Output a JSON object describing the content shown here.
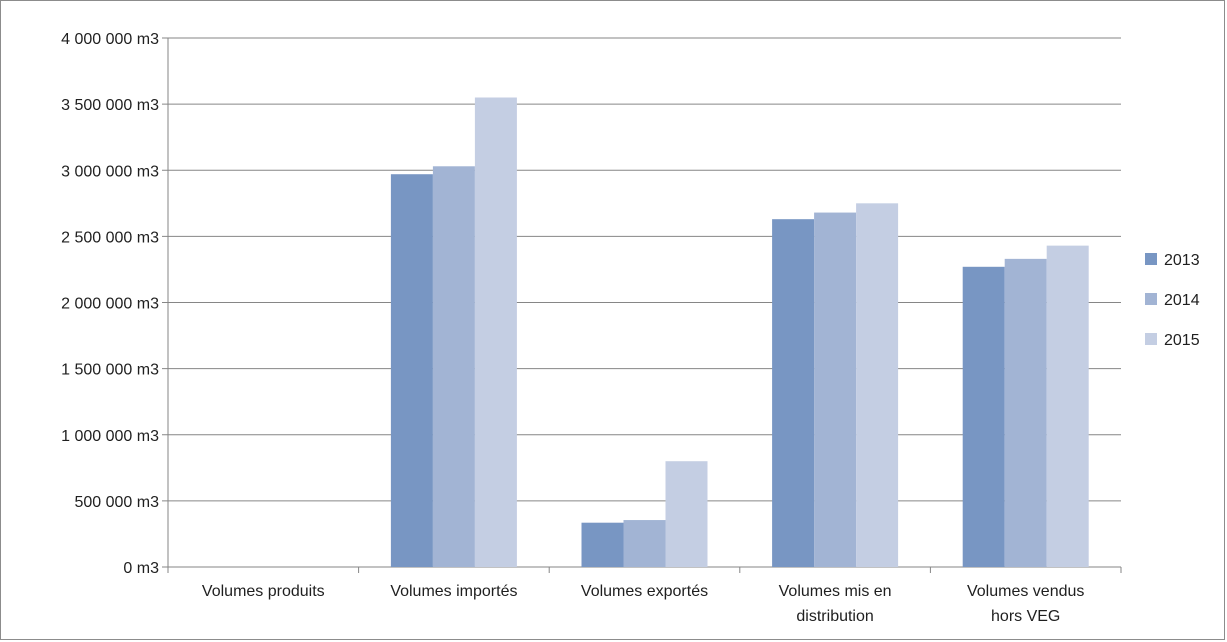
{
  "chart_data": {
    "type": "bar",
    "categories": [
      [
        "Volumes produits"
      ],
      [
        "Volumes importés"
      ],
      [
        "Volumes exportés"
      ],
      [
        "Volumes mis en",
        "distribution"
      ],
      [
        "Volumes vendus",
        "hors VEG"
      ]
    ],
    "series": [
      {
        "name": "2013",
        "color": "#7896c3",
        "values": [
          0,
          2970000,
          335000,
          2630000,
          2270000
        ]
      },
      {
        "name": "2014",
        "color": "#a2b4d4",
        "values": [
          0,
          3030000,
          355000,
          2680000,
          2330000
        ]
      },
      {
        "name": "2015",
        "color": "#c4cee3",
        "values": [
          0,
          3550000,
          800000,
          2750000,
          2430000
        ]
      }
    ],
    "yticks": [
      {
        "value": 0,
        "label": "0 m3"
      },
      {
        "value": 500000,
        "label": "500 000 m3"
      },
      {
        "value": 1000000,
        "label": "1 000 000 m3"
      },
      {
        "value": 1500000,
        "label": "1 500 000 m3"
      },
      {
        "value": 2000000,
        "label": "2 000 000 m3"
      },
      {
        "value": 2500000,
        "label": "2 500 000 m3"
      },
      {
        "value": 3000000,
        "label": "3 000 000 m3"
      },
      {
        "value": 3500000,
        "label": "3 500 000 m3"
      },
      {
        "value": 4000000,
        "label": "4 000 000 m3"
      }
    ],
    "ylim": [
      0,
      4000000
    ],
    "grid": true,
    "legend": "right",
    "title": "",
    "xlabel": "",
    "ylabel": ""
  }
}
